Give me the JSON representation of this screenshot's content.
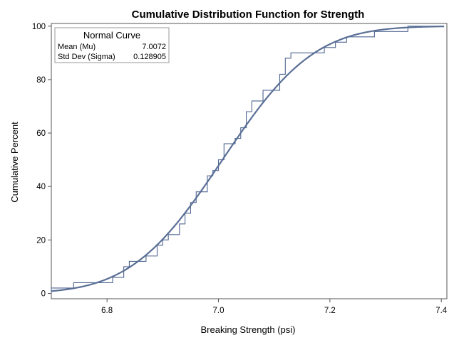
{
  "chart_data": {
    "type": "line",
    "title": "Cumulative Distribution Function for Strength",
    "xlabel": "Breaking Strength (psi)",
    "ylabel": "Cumulative Percent",
    "xlim": [
      6.7,
      7.41
    ],
    "ylim": [
      -2,
      101
    ],
    "xticks": [
      6.8,
      7.0,
      7.2,
      7.4
    ],
    "xtick_labels": [
      "6.8",
      "7.0",
      "7.2",
      "7.4"
    ],
    "yticks": [
      0,
      20,
      40,
      60,
      80,
      100
    ],
    "ytick_labels": [
      "0",
      "20",
      "40",
      "60",
      "80",
      "100"
    ],
    "grid": false,
    "legend_placement": "top-left",
    "inset": {
      "title": "Normal Curve",
      "rows": [
        {
          "label": "Mean (Mu)",
          "value": "7.0072"
        },
        {
          "label": "Std Dev (Sigma)",
          "value": "0.128905"
        }
      ]
    },
    "normal": {
      "mu": 7.0072,
      "sigma": 0.128905
    },
    "series": [
      {
        "type": "step",
        "x": [
          6.7,
          6.74,
          6.81,
          6.83,
          6.84,
          6.87,
          6.89,
          6.9,
          6.91,
          6.93,
          6.94,
          6.95,
          6.96,
          6.98,
          6.99,
          7.0,
          7.01,
          7.03,
          7.04,
          7.05,
          7.06,
          7.07,
          7.08,
          7.11,
          7.12,
          7.13,
          7.19,
          7.21,
          7.23,
          7.28,
          7.34
        ],
        "y": [
          2,
          4,
          6,
          10,
          12,
          14,
          18,
          20,
          22,
          26,
          30,
          34,
          38,
          44,
          46,
          50,
          56,
          58,
          62,
          68,
          72,
          72,
          76,
          82,
          88,
          90,
          92,
          94,
          96,
          98,
          100
        ]
      },
      {
        "type": "normal-cdf-line"
      }
    ],
    "colors": {
      "line": "#5a6f96",
      "step": "#4f6592",
      "axis": "#555555",
      "frame": "#555555"
    }
  }
}
